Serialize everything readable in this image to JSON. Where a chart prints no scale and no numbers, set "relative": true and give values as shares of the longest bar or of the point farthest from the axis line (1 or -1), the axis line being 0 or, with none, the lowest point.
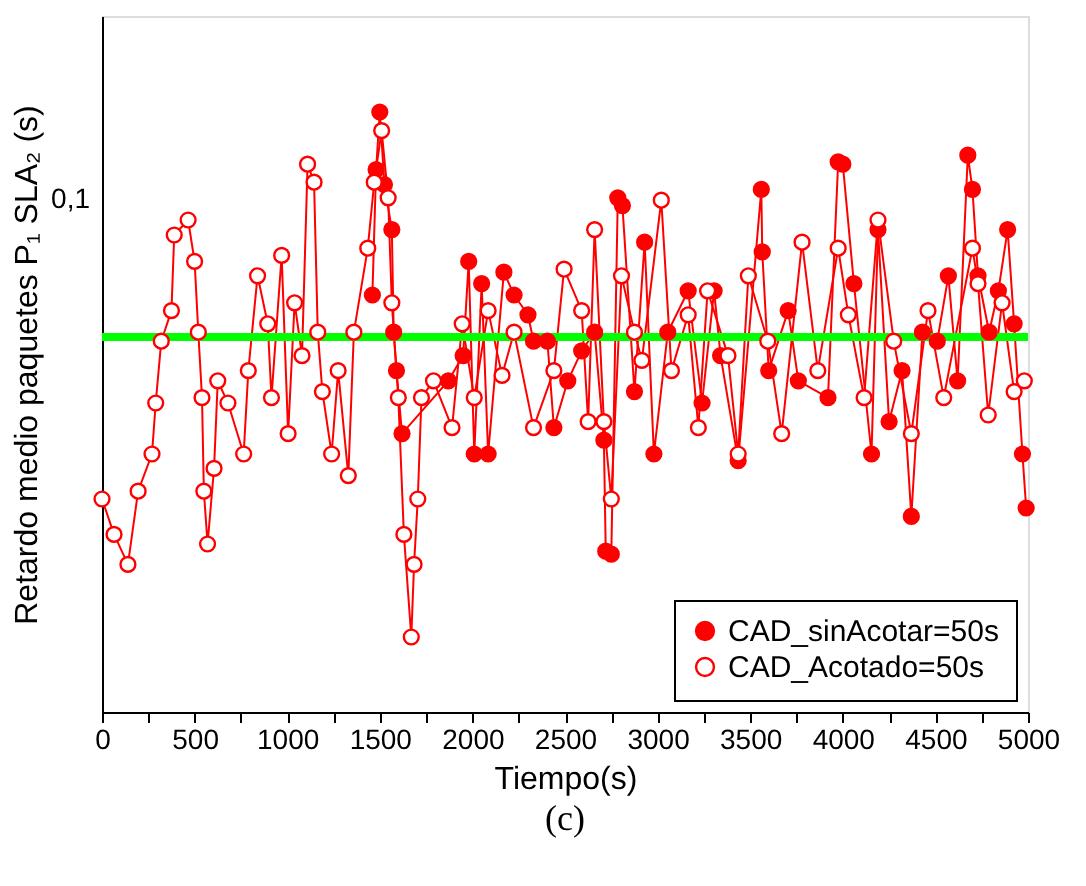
{
  "chart_data": {
    "type": "line",
    "xlabel": "Tiempo(s)",
    "ylabel": "Retardo medio paquetes P₁ SLA₂ (s)",
    "annotations": [
      "0,1",
      "(c)"
    ],
    "relative": true,
    "grid": false,
    "legend": "bottom right",
    "marker": "circle",
    "line_style": "solid",
    "xlim": [
      0,
      5000
    ],
    "xticks": [
      0,
      {
        "value": 250,
        "label": null
      },
      500,
      {
        "value": 750,
        "label": null
      },
      1000,
      {
        "value": 1250,
        "label": null
      },
      1500,
      {
        "value": 1750,
        "label": null
      },
      2000,
      {
        "value": 2250,
        "label": null
      },
      2500,
      {
        "value": 2750,
        "label": null
      },
      3000,
      {
        "value": 3250,
        "label": null
      },
      3500,
      {
        "value": 3750,
        "label": null
      },
      4000,
      {
        "value": 4250,
        "label": null
      },
      4500,
      {
        "value": 4750,
        "label": null
      },
      5000
    ],
    "ref_lines": [
      {
        "axis": "y",
        "value": 0.625,
        "color": "#00ff00"
      }
    ],
    "series": [
      {
        "name": "CAD_sinAcotar=50s",
        "color": "#ff0000",
        "x": [
          1460,
          1480,
          1500,
          1525,
          1565,
          1575,
          1590,
          1620,
          1870,
          1950,
          1980,
          2010,
          2050,
          2085,
          2170,
          2225,
          2300,
          2330,
          2405,
          2440,
          2515,
          2590,
          2660,
          2710,
          2720,
          2750,
          2785,
          2810,
          2875,
          2930,
          2980,
          3055,
          3165,
          3240,
          3305,
          3340,
          3435,
          3560,
          3565,
          3600,
          3705,
          3760,
          3920,
          3975,
          4000,
          4060,
          4155,
          4190,
          4250,
          4320,
          4370,
          4430,
          4510,
          4570,
          4620,
          4675,
          4700,
          4730,
          4790,
          4840,
          4890,
          4925,
          4970,
          4990
        ],
        "values": [
          0.695,
          0.904,
          1.0,
          0.879,
          0.804,
          0.633,
          0.569,
          0.464,
          0.552,
          0.594,
          0.751,
          0.43,
          0.714,
          0.43,
          0.733,
          0.695,
          0.662,
          0.618,
          0.618,
          0.474,
          0.552,
          0.602,
          0.633,
          0.453,
          0.268,
          0.263,
          0.857,
          0.844,
          0.534,
          0.783,
          0.43,
          0.633,
          0.702,
          0.515,
          0.702,
          0.594,
          0.419,
          0.871,
          0.767,
          0.569,
          0.669,
          0.552,
          0.524,
          0.917,
          0.913,
          0.714,
          0.43,
          0.804,
          0.484,
          0.569,
          0.326,
          0.633,
          0.618,
          0.727,
          0.552,
          0.928,
          0.871,
          0.727,
          0.633,
          0.702,
          0.804,
          0.647,
          0.43,
          0.34
        ]
      },
      {
        "name": "CAD_Acotado=50s",
        "color": "#ff0000",
        "x": [
          0,
          65,
          140,
          195,
          270,
          290,
          320,
          375,
          390,
          465,
          500,
          520,
          540,
          550,
          570,
          605,
          625,
          680,
          765,
          790,
          840,
          895,
          915,
          970,
          1005,
          1040,
          1080,
          1110,
          1145,
          1165,
          1190,
          1240,
          1275,
          1330,
          1360,
          1435,
          1470,
          1510,
          1545,
          1565,
          1600,
          1630,
          1670,
          1685,
          1705,
          1725,
          1790,
          1890,
          1945,
          2010,
          2085,
          2160,
          2225,
          2330,
          2440,
          2495,
          2590,
          2625,
          2660,
          2710,
          2750,
          2805,
          2875,
          2915,
          3020,
          3075,
          3165,
          3220,
          3270,
          3380,
          3435,
          3490,
          3595,
          3670,
          3780,
          3865,
          3975,
          4030,
          4115,
          4190,
          4275,
          4370,
          4460,
          4545,
          4700,
          4730,
          4785,
          4860,
          4925,
          4980
        ],
        "values": [
          0.355,
          0.296,
          0.246,
          0.368,
          0.43,
          0.515,
          0.618,
          0.669,
          0.795,
          0.82,
          0.751,
          0.633,
          0.524,
          0.368,
          0.28,
          0.406,
          0.552,
          0.515,
          0.43,
          0.569,
          0.727,
          0.647,
          0.524,
          0.761,
          0.464,
          0.682,
          0.594,
          0.913,
          0.883,
          0.633,
          0.534,
          0.43,
          0.569,
          0.394,
          0.633,
          0.773,
          0.883,
          0.969,
          0.857,
          0.682,
          0.524,
          0.296,
          0.125,
          0.246,
          0.355,
          0.524,
          0.552,
          0.474,
          0.647,
          0.524,
          0.669,
          0.561,
          0.633,
          0.474,
          0.569,
          0.738,
          0.669,
          0.484,
          0.804,
          0.484,
          0.355,
          0.727,
          0.633,
          0.586,
          0.853,
          0.569,
          0.662,
          0.474,
          0.702,
          0.594,
          0.43,
          0.727,
          0.618,
          0.464,
          0.783,
          0.569,
          0.773,
          0.662,
          0.524,
          0.82,
          0.618,
          0.464,
          0.669,
          0.524,
          0.773,
          0.714,
          0.495,
          0.682,
          0.534,
          0.552
        ]
      }
    ]
  }
}
